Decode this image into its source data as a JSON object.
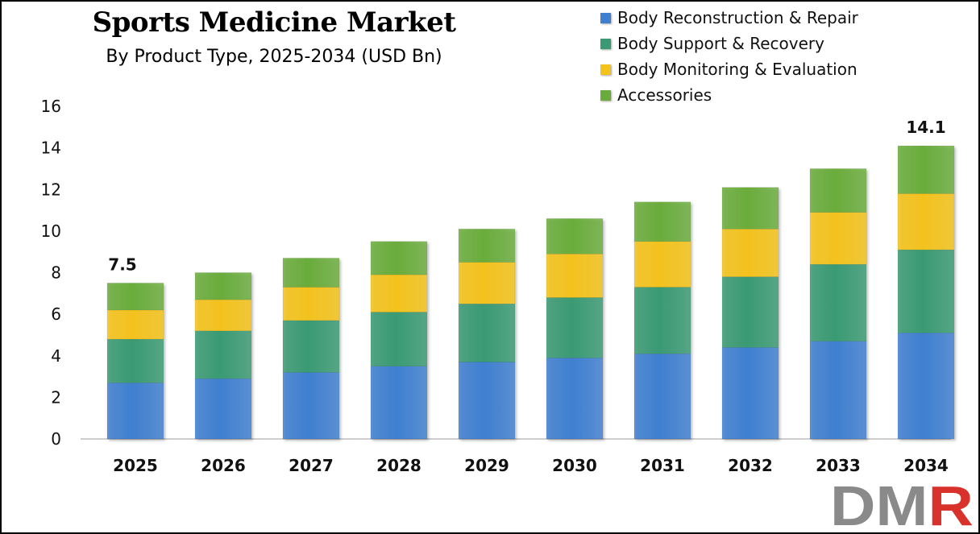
{
  "chart_data": {
    "type": "bar",
    "stacked": true,
    "title": "Sports Medicine Market",
    "subtitle": "By Product Type, 2025-2034 (USD Bn)",
    "categories": [
      "2025",
      "2026",
      "2027",
      "2028",
      "2029",
      "2030",
      "2031",
      "2032",
      "2033",
      "2034"
    ],
    "series": [
      {
        "name": "Body Reconstruction & Repair",
        "color": "#3f7fd0",
        "values": [
          2.7,
          2.9,
          3.2,
          3.5,
          3.7,
          3.9,
          4.1,
          4.4,
          4.7,
          5.1
        ]
      },
      {
        "name": "Body Support & Recovery",
        "color": "#3a9a73",
        "values": [
          2.1,
          2.3,
          2.5,
          2.6,
          2.8,
          2.9,
          3.2,
          3.4,
          3.7,
          4.0
        ]
      },
      {
        "name": "Body Monitoring & Evaluation",
        "color": "#f3c21b",
        "values": [
          1.4,
          1.5,
          1.6,
          1.8,
          2.0,
          2.1,
          2.2,
          2.3,
          2.5,
          2.7
        ]
      },
      {
        "name": "Accessories",
        "color": "#6aac3c",
        "values": [
          1.3,
          1.3,
          1.4,
          1.6,
          1.6,
          1.7,
          1.9,
          2.0,
          2.1,
          2.3
        ]
      }
    ],
    "totals": [
      7.5,
      8.0,
      8.7,
      9.5,
      10.1,
      10.6,
      11.4,
      12.1,
      13.0,
      14.1
    ],
    "data_labels": [
      {
        "category": "2025",
        "text": "7.5"
      },
      {
        "category": "2034",
        "text": "14.1"
      }
    ],
    "ylim": [
      0,
      16
    ],
    "yticks": [
      "0",
      "2",
      "4",
      "6",
      "8",
      "10",
      "12",
      "14",
      "16"
    ],
    "grid": false,
    "legend_position": "top-right",
    "xlabel": "",
    "ylabel": ""
  },
  "logo": {
    "text": "DMR",
    "colors": [
      "#8a8a8a",
      "#d9312b"
    ]
  }
}
